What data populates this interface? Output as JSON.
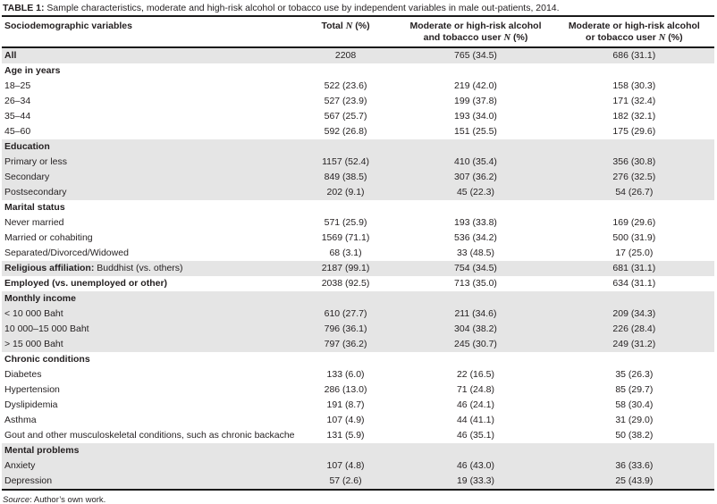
{
  "title": {
    "prefix": "TABLE 1:",
    "text": " Sample characteristics, moderate and high-risk alcohol or tobacco use by independent variables in male out-patients, 2014."
  },
  "table": {
    "headers": {
      "variables": "Sociodemographic variables",
      "total": {
        "pre": "Total ",
        "n": "N",
        "post": " (%)"
      },
      "and_user": {
        "line1": "Moderate or high-risk alcohol",
        "line2_pre": "and tobacco user ",
        "n": "N",
        "post": " (%)"
      },
      "or_user": {
        "line1": "Moderate or high-risk alcohol",
        "line2_pre": "or tobacco user ",
        "n": "N",
        "post": " (%)"
      }
    },
    "rows": [
      {
        "label": "All",
        "bold": true,
        "shaded": true,
        "total": "2208",
        "and_user": "765 (34.5)",
        "or_user": "686 (31.1)"
      },
      {
        "label": "Age in years",
        "bold": true,
        "section": true,
        "shaded": false,
        "total": "",
        "and_user": "",
        "or_user": ""
      },
      {
        "label": "18–25",
        "shaded": false,
        "total": "522 (23.6)",
        "and_user": "219 (42.0)",
        "or_user": "158 (30.3)"
      },
      {
        "label": "26–34",
        "shaded": false,
        "total": "527 (23.9)",
        "and_user": "199 (37.8)",
        "or_user": "171 (32.4)"
      },
      {
        "label": "35–44",
        "shaded": false,
        "total": "567 (25.7)",
        "and_user": "193 (34.0)",
        "or_user": "182 (32.1)"
      },
      {
        "label": "45–60",
        "shaded": false,
        "total": "592 (26.8)",
        "and_user": "151 (25.5)",
        "or_user": "175 (29.6)"
      },
      {
        "label": "Education",
        "bold": true,
        "section": true,
        "shaded": true,
        "total": "",
        "and_user": "",
        "or_user": ""
      },
      {
        "label": "Primary or less",
        "shaded": true,
        "total": "1157 (52.4)",
        "and_user": "410 (35.4)",
        "or_user": "356 (30.8)"
      },
      {
        "label": "Secondary",
        "shaded": true,
        "total": "849 (38.5)",
        "and_user": "307 (36.2)",
        "or_user": "276 (32.5)"
      },
      {
        "label": "Postsecondary",
        "shaded": true,
        "total": "202 (9.1)",
        "and_user": "45 (22.3)",
        "or_user": "54 (26.7)"
      },
      {
        "label": "Marital status",
        "bold": true,
        "section": true,
        "shaded": false,
        "total": "",
        "and_user": "",
        "or_user": ""
      },
      {
        "label": "Never married",
        "shaded": false,
        "total": "571 (25.9)",
        "and_user": "193 (33.8)",
        "or_user": "169 (29.6)"
      },
      {
        "label": "Married or cohabiting",
        "shaded": false,
        "total": "1569 (71.1)",
        "and_user": "536 (34.2)",
        "or_user": "500 (31.9)"
      },
      {
        "label": "Separated/Divorced/Widowed",
        "shaded": false,
        "total": "68 (3.1)",
        "and_user": "33 (48.5)",
        "or_user": "17 (25.0)"
      },
      {
        "bold_prefix": "Religious affiliation:",
        "label": " Buddhist (vs. others)",
        "shaded": true,
        "total": "2187 (99.1)",
        "and_user": "754 (34.5)",
        "or_user": "681 (31.1)"
      },
      {
        "label": "Employed (vs. unemployed or other)",
        "bold": true,
        "shaded": false,
        "total": "2038 (92.5)",
        "and_user": "713 (35.0)",
        "or_user": "634 (31.1)"
      },
      {
        "label": "Monthly income",
        "bold": true,
        "section": true,
        "shaded": true,
        "total": "",
        "and_user": "",
        "or_user": ""
      },
      {
        "label": "< 10 000 Baht",
        "shaded": true,
        "total": "610 (27.7)",
        "and_user": "211 (34.6)",
        "or_user": "209 (34.3)"
      },
      {
        "label": "10 000–15 000 Baht",
        "shaded": true,
        "total": "796 (36.1)",
        "and_user": "304 (38.2)",
        "or_user": "226 (28.4)"
      },
      {
        "label": "> 15 000 Baht",
        "shaded": true,
        "total": "797 (36.2)",
        "and_user": "245 (30.7)",
        "or_user": "249 (31.2)"
      },
      {
        "label": "Chronic conditions",
        "bold": true,
        "section": true,
        "shaded": false,
        "total": "",
        "and_user": "",
        "or_user": ""
      },
      {
        "label": "Diabetes",
        "shaded": false,
        "total": "133 (6.0)",
        "and_user": "22 (16.5)",
        "or_user": "35 (26.3)"
      },
      {
        "label": "Hypertension",
        "shaded": false,
        "total": "286 (13.0)",
        "and_user": "71 (24.8)",
        "or_user": "85 (29.7)"
      },
      {
        "label": "Dyslipidemia",
        "shaded": false,
        "total": "191 (8.7)",
        "and_user": "46 (24.1)",
        "or_user": "58 (30.4)"
      },
      {
        "label": "Asthma",
        "shaded": false,
        "total": "107 (4.9)",
        "and_user": "44 (41.1)",
        "or_user": "31 (29.0)"
      },
      {
        "label": "Gout and other musculoskeletal conditions, such as chronic backache",
        "shaded": false,
        "total": "131 (5.9)",
        "and_user": "46 (35.1)",
        "or_user": "50 (38.2)"
      },
      {
        "label": "Mental problems",
        "bold": true,
        "section": true,
        "shaded": true,
        "total": "",
        "and_user": "",
        "or_user": ""
      },
      {
        "label": "Anxiety",
        "shaded": true,
        "total": "107 (4.8)",
        "and_user": "46 (43.0)",
        "or_user": "36 (33.6)"
      },
      {
        "label": "Depression",
        "shaded": true,
        "total": "57 (2.6)",
        "and_user": "19 (33.3)",
        "or_user": "25 (43.9)"
      }
    ]
  },
  "source": {
    "label": "Source",
    "text": ": Author’s own work."
  },
  "colors": {
    "shaded_row": "#e5e5e5",
    "text": "#231f20",
    "border": "#1a1a1a",
    "background": "#ffffff"
  }
}
